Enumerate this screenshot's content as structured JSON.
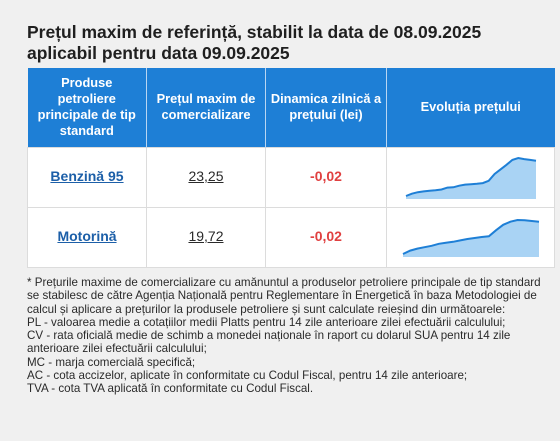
{
  "title": "Prețul maxim de referință, stabilit la data de 08.09.2025 aplicabil pentru data 09.09.2025",
  "table": {
    "headers": [
      "Produse petroliere principale de tip standard",
      "Prețul maxim de comercializare",
      "Dinamica zilnică a prețului (lei)",
      "Evoluția prețului"
    ],
    "rows": [
      {
        "product": "Benzină 95",
        "price": "23,25",
        "change": "-0,02",
        "trend": [
          0,
          0.06,
          0.1,
          0.12,
          0.14,
          0.15,
          0.17,
          0.22,
          0.23,
          0.27,
          0.3,
          0.31,
          0.32,
          0.34,
          0.4,
          0.58,
          0.7,
          0.82,
          0.95,
          1.0,
          0.97,
          0.95,
          0.93
        ]
      },
      {
        "product": "Motorină",
        "price": "19,72",
        "change": "-0,02",
        "trend": [
          0,
          0.1,
          0.16,
          0.2,
          0.24,
          0.3,
          0.33,
          0.36,
          0.4,
          0.44,
          0.47,
          0.5,
          0.52,
          0.7,
          0.86,
          0.95,
          1.0,
          0.99,
          0.97,
          0.95
        ]
      }
    ]
  },
  "notes": [
    "* Prețurile maxime de comercializare cu amănuntul a produselor petroliere principale de tip standard se stabilesc de către Agenția Națională pentru Reglementare în Energetică în baza Metodologiei de calcul și aplicare a prețurilor la produsele petroliere și sunt calculate reieșind din următoarele:",
    "PL - valoarea medie a cotațiilor medii Platts pentru 14 zile anterioare zilei efectuării calculului;",
    "CV - rata oficială medie de schimb a monedei naționale în raport cu dolarul SUA pentru 14 zile anterioare zilei efectuării calculului;",
    "MC - marja comercială specifică;",
    "AC - cota accizelor, aplicate în conformitate cu Codul Fiscal, pentru 14 zile anterioare;",
    "TVA - cota TVA aplicată în conformitate cu Codul Fiscal."
  ],
  "colors": {
    "header_bg": "#1e7fd6",
    "link": "#1c5fa8",
    "negative": "#e04040",
    "spark_line": "#1e7fd6",
    "spark_fill": "#a9d3f4"
  }
}
